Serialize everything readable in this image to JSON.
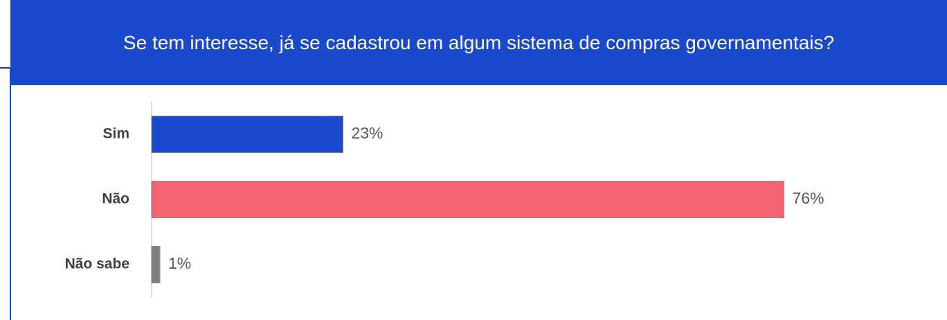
{
  "chart_data": {
    "type": "bar",
    "orientation": "horizontal",
    "title": "Se tem interesse, já se cadastrou em algum sistema de compras governamentais?",
    "categories": [
      "Sim",
      "Não",
      "Não sabe"
    ],
    "values": [
      23,
      76,
      1
    ],
    "value_labels": [
      "23%",
      "76%",
      "1%"
    ],
    "colors": [
      "#1a4acb",
      "#f56272",
      "#7f7f7f"
    ]
  }
}
